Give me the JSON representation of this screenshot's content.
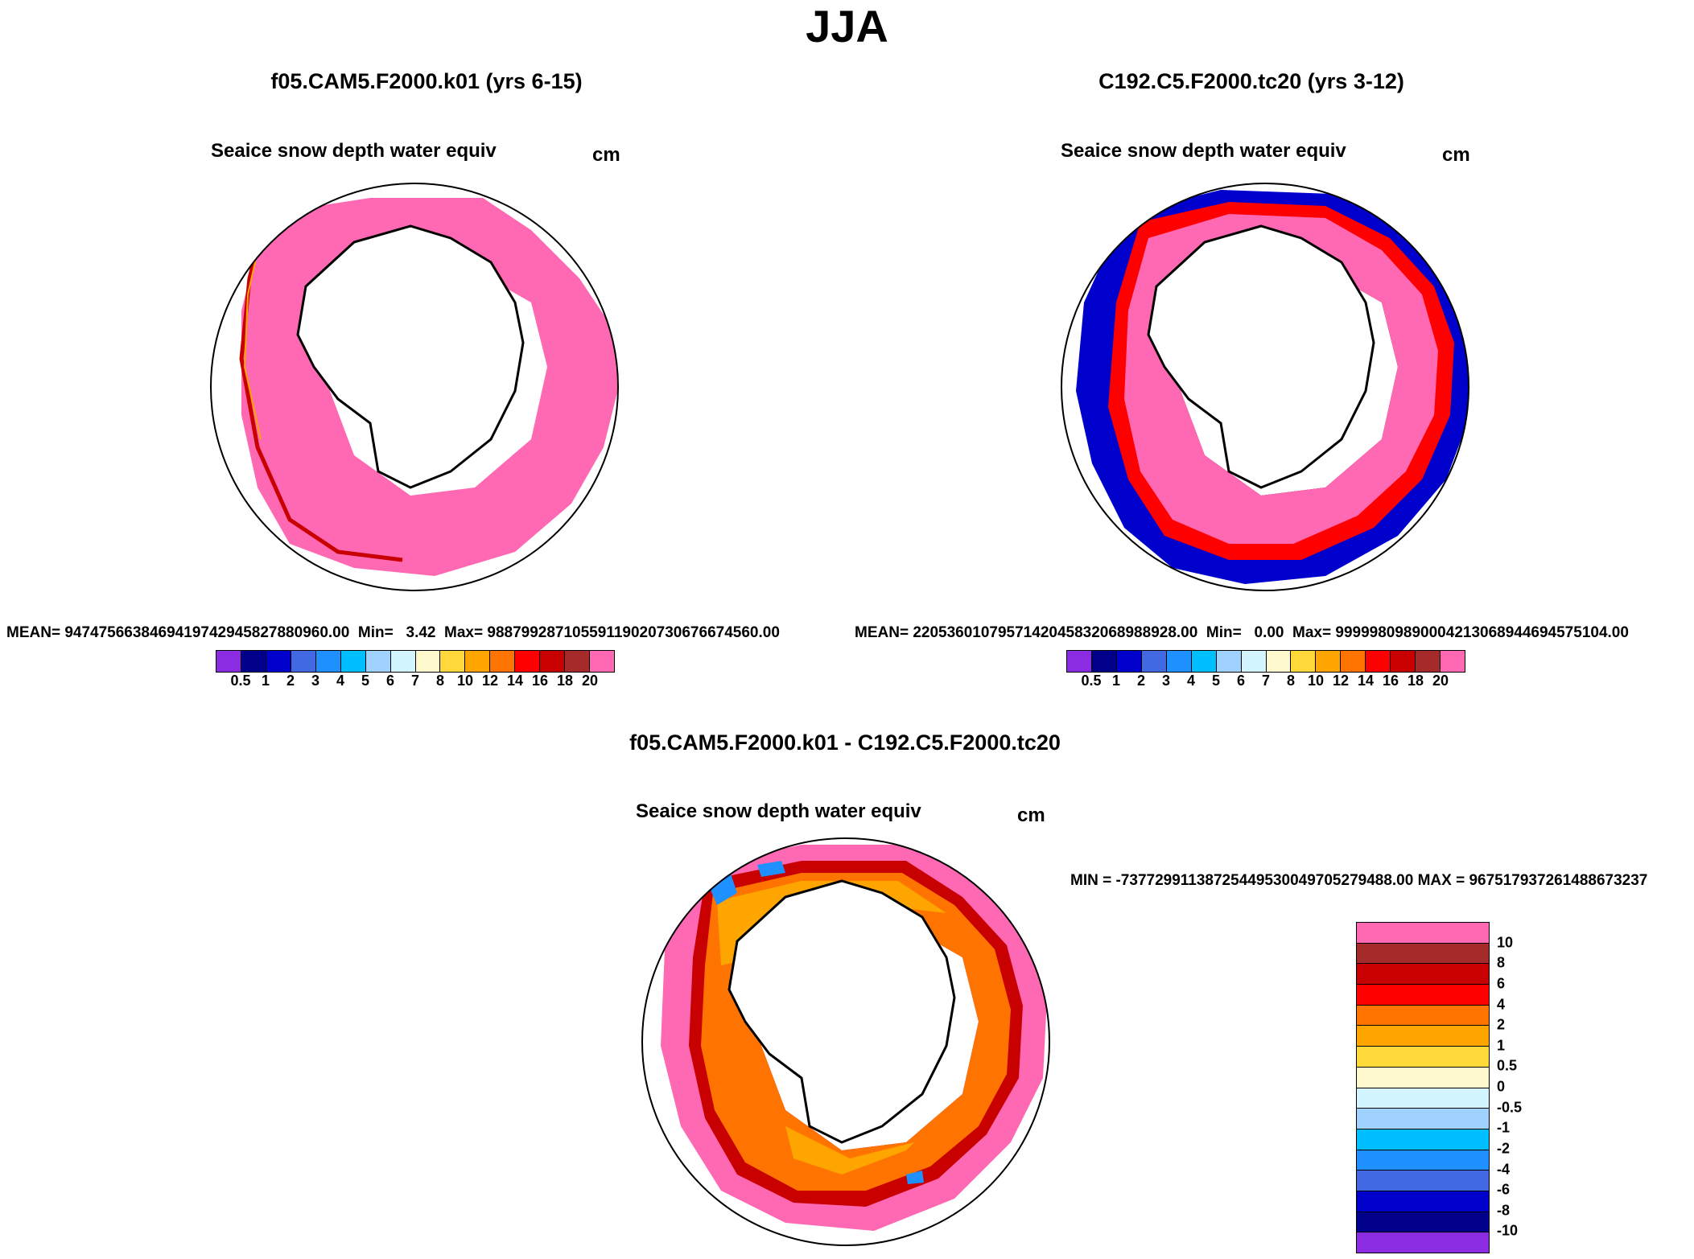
{
  "title": "JJA",
  "colors": {
    "abs": [
      "#8b2be2",
      "#00008b",
      "#0000cd",
      "#4169e1",
      "#1e90ff",
      "#00bfff",
      "#a0d2ff",
      "#d2f5ff",
      "#fffacd",
      "#ffd93a",
      "#ffa500",
      "#ff7400",
      "#ff0000",
      "#c90000",
      "#a52a2a",
      "#ff69b4"
    ],
    "diff": [
      "#8b2be2",
      "#00008b",
      "#0000cd",
      "#4169e1",
      "#1e90ff",
      "#00bfff",
      "#a0d2ff",
      "#d2f5ff",
      "#fffacd",
      "#ffd93a",
      "#ffa500",
      "#ff7400",
      "#ff0000",
      "#c90000",
      "#a52a2a",
      "#ff69b4"
    ]
  },
  "panel1": {
    "case": "f05.CAM5.F2000.k01 (yrs 6-15)",
    "variable": "Seaice snow depth water equiv",
    "units": "cm",
    "stats": "MEAN= 947475663846941974294582788096​0.00  Min=   3.42  Max= 98879928710559119020730676674560.00",
    "labels": [
      "0.5",
      "1",
      "2",
      "3",
      "4",
      "5",
      "6",
      "7",
      "8",
      "10",
      "12",
      "14",
      "16",
      "18",
      "20"
    ]
  },
  "panel2": {
    "case": "C192.C5.F2000.tc20 (yrs 3-12)",
    "variable": "Seaice snow depth water equiv",
    "units": "cm",
    "stats": "MEAN= 22053601079571420458320689889​28.00  Min=   0.00  Max= 99999809890004213068944694575104.00",
    "labels": [
      "0.5",
      "1",
      "2",
      "3",
      "4",
      "5",
      "6",
      "7",
      "8",
      "10",
      "12",
      "14",
      "16",
      "18",
      "20"
    ]
  },
  "panel3": {
    "case": "f05.CAM5.F2000.k01 - C192.C5.F2000.tc20",
    "variable": "Seaice snow depth water equiv",
    "units": "cm",
    "stats": "MIN = -73772991138725449530049705279488.00 MAX = 967517937261488673237",
    "labels": [
      "10",
      "8",
      "6",
      "4",
      "2",
      "1",
      "0.5",
      "0",
      "-0.5",
      "-1",
      "-2",
      "-4",
      "-6",
      "-8",
      "-10"
    ]
  }
}
